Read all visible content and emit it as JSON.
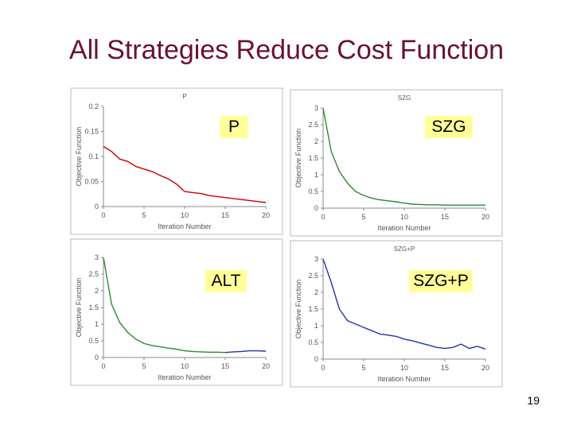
{
  "slide": {
    "title": "All Strategies Reduce Cost Function",
    "page_number": "19",
    "title_color": "#6b1030",
    "label_bg": "#ffff99"
  },
  "chart_data": [
    {
      "type": "line",
      "label": "P",
      "title": "P",
      "xlabel": "Iteration Number",
      "ylabel": "Objective Function",
      "line_color": "#cc0000",
      "xlim": [
        0,
        20
      ],
      "ylim": [
        0,
        0.2
      ],
      "xticks": [
        "0",
        "5",
        "10",
        "15",
        "20"
      ],
      "yticks": [
        "0",
        "0.05",
        "0.1",
        "0.15",
        "0.2"
      ],
      "x": [
        0,
        1,
        2,
        3,
        4,
        5,
        6,
        7,
        8,
        9,
        10,
        11,
        12,
        13,
        14,
        15,
        16,
        17,
        18,
        19,
        20
      ],
      "y": [
        0.12,
        0.11,
        0.095,
        0.09,
        0.08,
        0.075,
        0.07,
        0.062,
        0.055,
        0.045,
        0.03,
        0.028,
        0.026,
        0.022,
        0.02,
        0.018,
        0.016,
        0.014,
        0.012,
        0.01,
        0.008
      ]
    },
    {
      "type": "line",
      "label": "SZG",
      "title": "SZG",
      "xlabel": "Iteration Number",
      "ylabel": "Objective Function",
      "line_color": "#2d8a2d",
      "xlim": [
        0,
        20
      ],
      "ylim": [
        0,
        3
      ],
      "xticks": [
        "0",
        "5",
        "10",
        "15",
        "20"
      ],
      "yticks": [
        "0",
        "0.5",
        "1",
        "1.5",
        "2",
        "2.5",
        "3"
      ],
      "x": [
        0,
        1,
        2,
        3,
        4,
        5,
        6,
        7,
        8,
        9,
        10,
        11,
        12,
        13,
        14,
        15,
        16,
        17,
        18,
        19,
        20
      ],
      "y": [
        3.0,
        1.7,
        1.1,
        0.75,
        0.5,
        0.38,
        0.3,
        0.25,
        0.22,
        0.19,
        0.15,
        0.12,
        0.11,
        0.1,
        0.1,
        0.09,
        0.09,
        0.09,
        0.09,
        0.09,
        0.09
      ]
    },
    {
      "type": "line",
      "label": "ALT",
      "title": "",
      "xlabel": "Iteration Number",
      "ylabel": "Objective Function",
      "line_color": "#2d8a2d",
      "line_color_2": "#2233aa",
      "switch_at": 15,
      "xlim": [
        0,
        20
      ],
      "ylim": [
        0,
        3
      ],
      "xticks": [
        "0",
        "5",
        "10",
        "15",
        "20"
      ],
      "yticks": [
        "0",
        "0.5",
        "1",
        "1.5",
        "2",
        "2.5",
        "3"
      ],
      "x": [
        0,
        1,
        2,
        3,
        4,
        5,
        6,
        7,
        8,
        9,
        10,
        11,
        12,
        13,
        14,
        15,
        16,
        17,
        18,
        19,
        20
      ],
      "y": [
        3.0,
        1.6,
        1.05,
        0.75,
        0.55,
        0.42,
        0.36,
        0.32,
        0.28,
        0.25,
        0.2,
        0.18,
        0.17,
        0.16,
        0.16,
        0.15,
        0.17,
        0.18,
        0.2,
        0.2,
        0.19
      ]
    },
    {
      "type": "line",
      "label": "SZG+P",
      "title": "SZG+P",
      "xlabel": "Iteration Number",
      "ylabel": "Objective Function",
      "line_color": "#2233aa",
      "xlim": [
        0,
        20
      ],
      "ylim": [
        0,
        3
      ],
      "xticks": [
        "0",
        "5",
        "10",
        "15",
        "20"
      ],
      "yticks": [
        "0",
        "0.5",
        "1",
        "1.5",
        "2",
        "2.5",
        "3"
      ],
      "x": [
        0,
        1,
        2,
        3,
        4,
        5,
        6,
        7,
        8,
        9,
        10,
        11,
        12,
        13,
        14,
        15,
        16,
        17,
        18,
        19,
        20
      ],
      "y": [
        3.0,
        2.3,
        1.5,
        1.15,
        1.05,
        0.95,
        0.85,
        0.75,
        0.72,
        0.68,
        0.6,
        0.55,
        0.48,
        0.42,
        0.35,
        0.32,
        0.35,
        0.45,
        0.32,
        0.38,
        0.3
      ]
    }
  ]
}
